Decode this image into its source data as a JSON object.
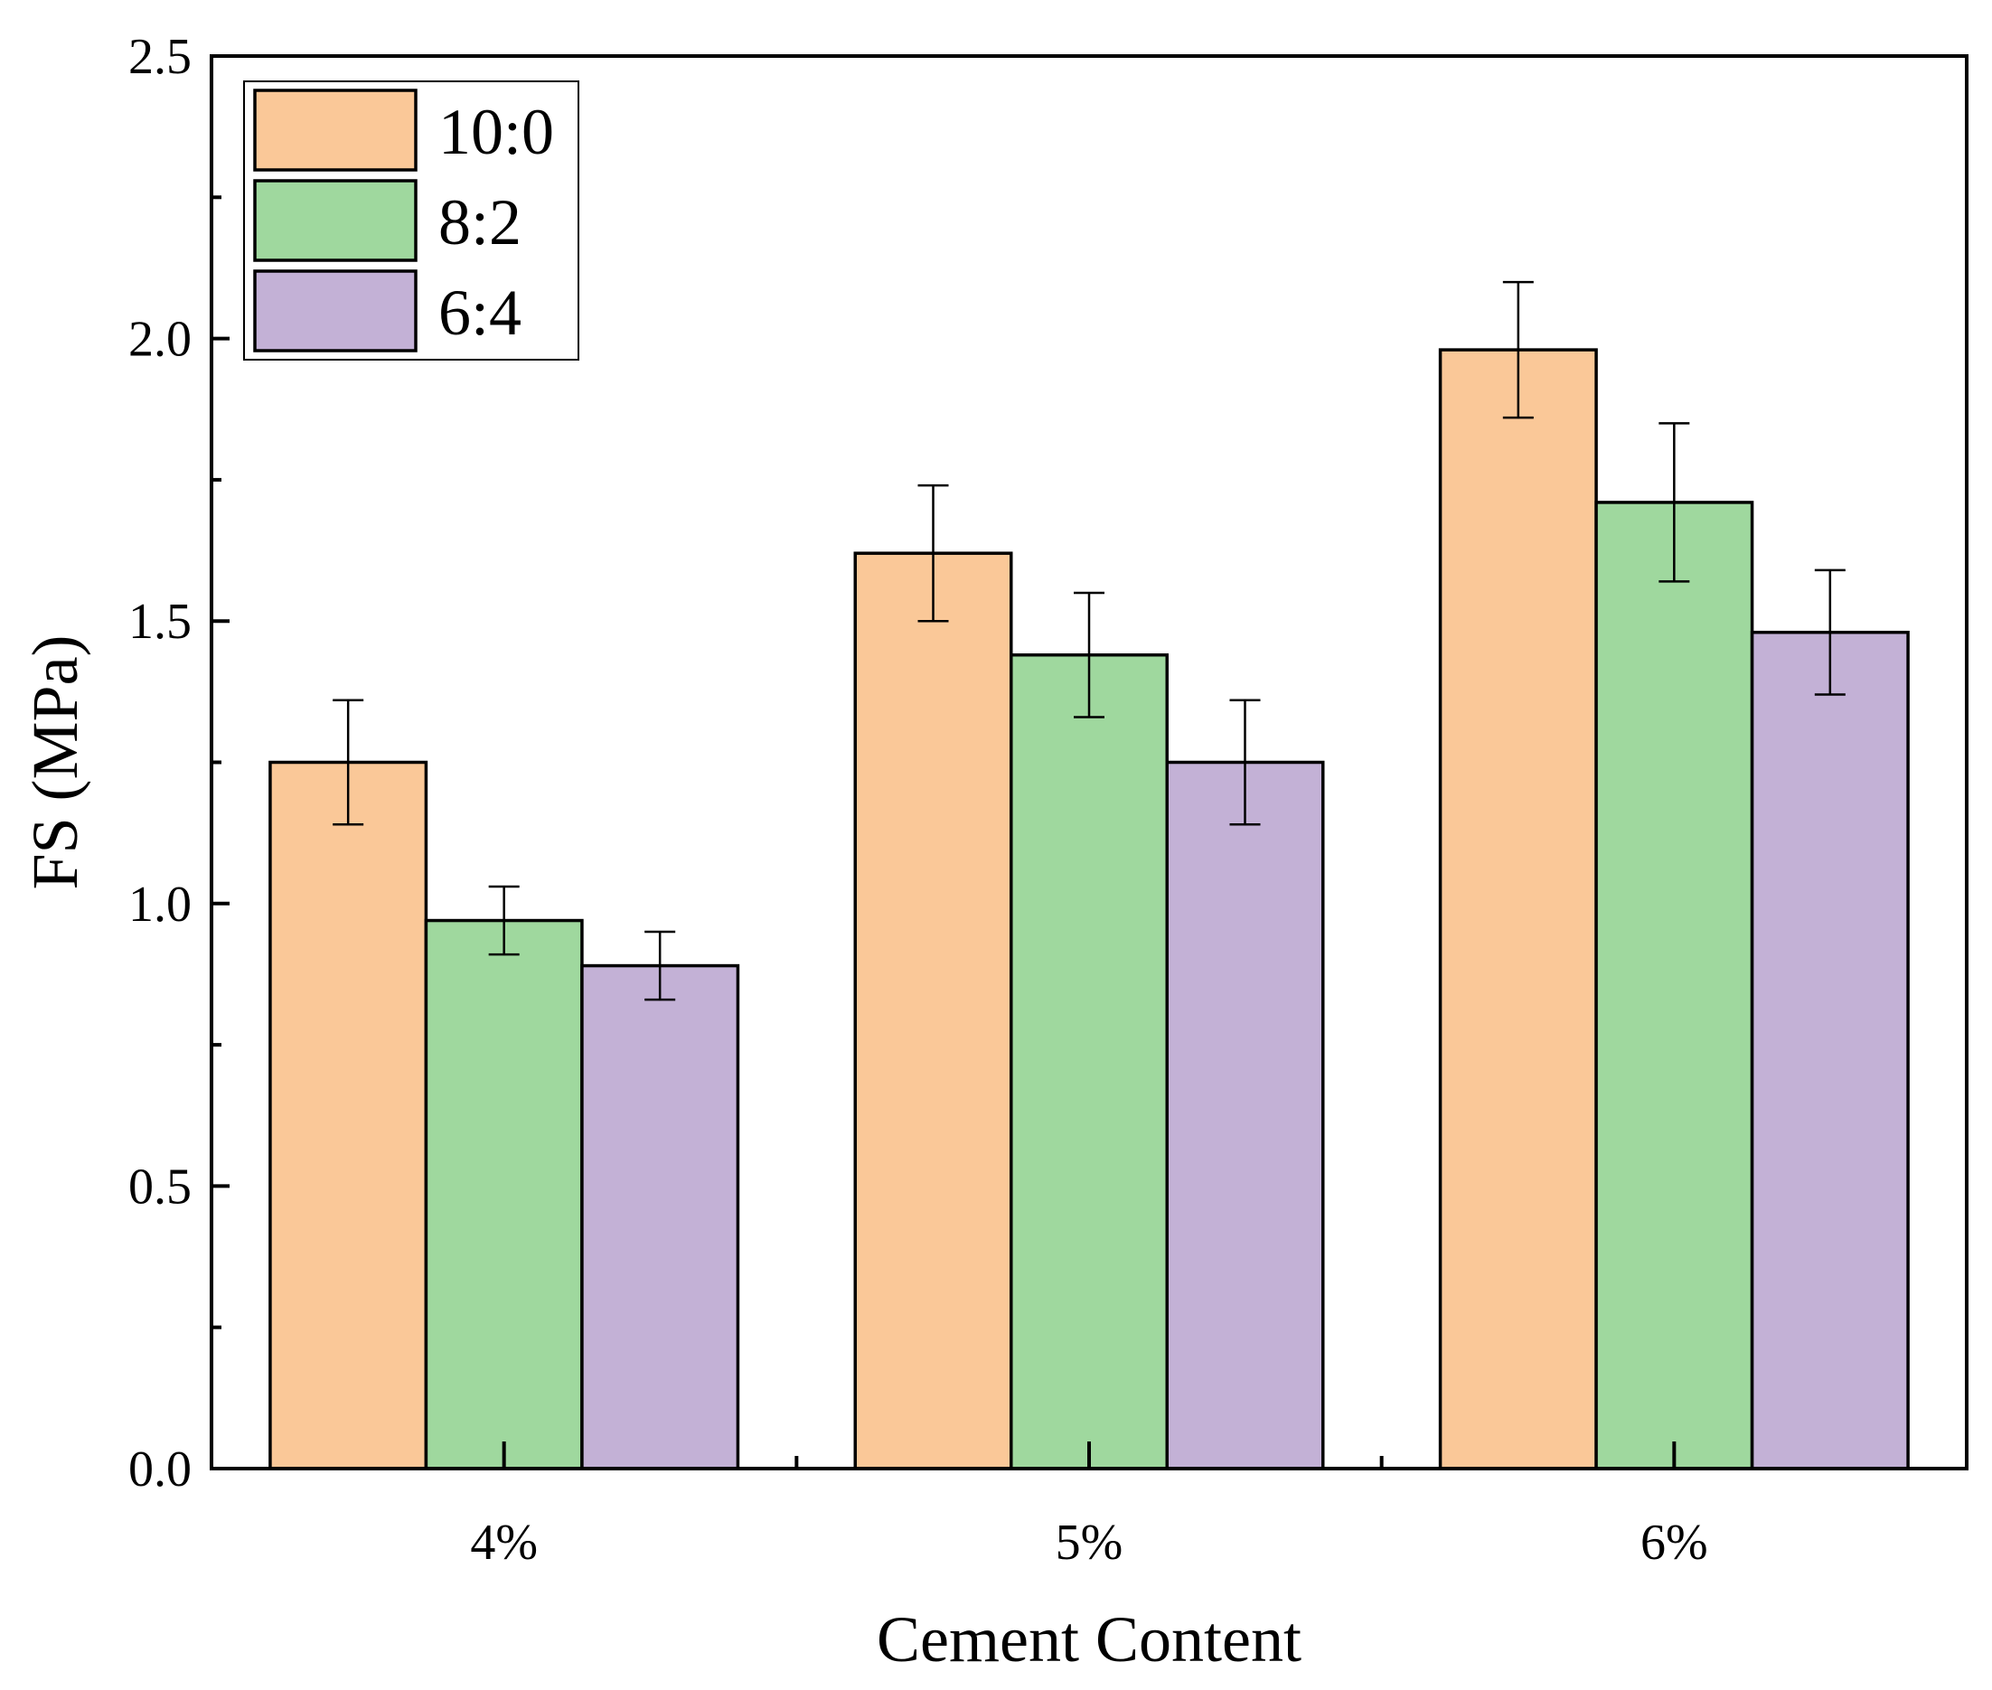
{
  "chart_data": {
    "type": "bar",
    "title": "",
    "xlabel": "Cement Content",
    "ylabel": "FS (MPa)",
    "categories": [
      "4%",
      "5%",
      "6%"
    ],
    "ylim": [
      0,
      2.5
    ],
    "yticks": [
      "0.0",
      "0.5",
      "1.0",
      "1.5",
      "2.0",
      "2.5"
    ],
    "ytick_values": [
      0,
      0.5,
      1.0,
      1.5,
      2.0,
      2.5
    ],
    "grid": false,
    "legend_position": "top-left",
    "series": [
      {
        "name": "10:0",
        "color": "#FAC898",
        "values": [
          1.25,
          1.62,
          1.98
        ],
        "errors": [
          0.11,
          0.12,
          0.12
        ]
      },
      {
        "name": "8:2",
        "color": "#9FD89E",
        "values": [
          0.97,
          1.44,
          1.71
        ],
        "errors": [
          0.06,
          0.11,
          0.14
        ]
      },
      {
        "name": "6:4",
        "color": "#C3B1D6",
        "values": [
          0.89,
          1.25,
          1.48
        ],
        "errors": [
          0.06,
          0.11,
          0.11
        ]
      }
    ]
  }
}
